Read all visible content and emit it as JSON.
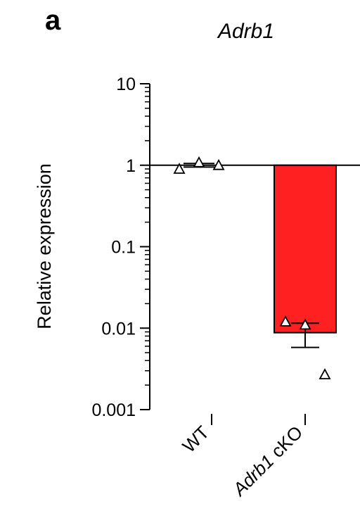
{
  "panel_label": "a",
  "chart_data": {
    "type": "bar",
    "title": "Adrb1",
    "ylabel": "Relative expression",
    "xlabel": "",
    "yscale": "log",
    "ylim": [
      0.001,
      10
    ],
    "yticks": [
      {
        "value": 0.001,
        "label": "0.001"
      },
      {
        "value": 0.01,
        "label": "0.01"
      },
      {
        "value": 0.1,
        "label": "0.1"
      },
      {
        "value": 1,
        "label": "1"
      },
      {
        "value": 10,
        "label": "10"
      }
    ],
    "reference_line": 1,
    "grid": false,
    "categories": [
      {
        "label": "WT",
        "italic_part": "",
        "plain_part": "WT"
      },
      {
        "label": "Adrb1 cKO",
        "italic_part": "Adrb1",
        "plain_part": " cKO"
      }
    ],
    "values": [
      1.0,
      0.0088
    ],
    "error_lower": [
      0.95,
      0.0058
    ],
    "error_upper": [
      1.05,
      0.0115
    ],
    "points": [
      [
        0.9,
        1.08,
        1.0
      ],
      [
        0.012,
        0.011,
        0.0027
      ]
    ],
    "colors": {
      "bars": [
        "#ffffff",
        "#ff2121"
      ],
      "bar_edge": "#000000",
      "axis": "#000000"
    }
  }
}
